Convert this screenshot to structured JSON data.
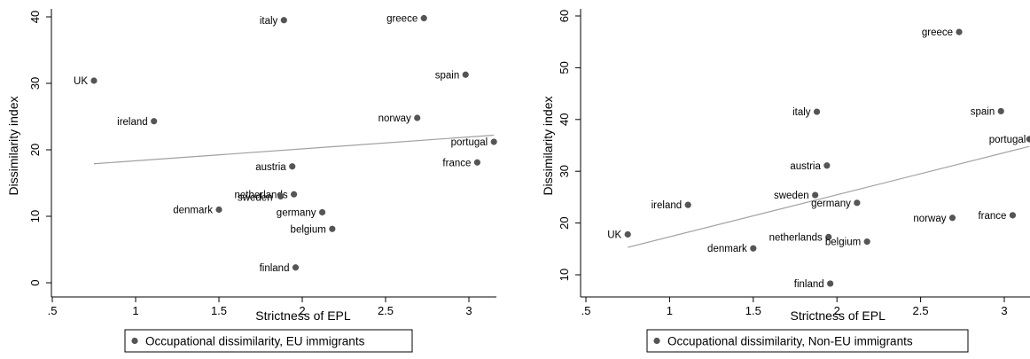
{
  "chart_data": [
    {
      "type": "scatter",
      "xlabel": "Strictness of EPL",
      "ylabel": "Dissimilarity index",
      "xlim": [
        0.5,
        3.15
      ],
      "ylim": [
        0,
        40
      ],
      "x_ticks": [
        0.5,
        1,
        1.5,
        2,
        2.5,
        3
      ],
      "x_tick_labels": [
        ".5",
        "1",
        "1.5",
        "2",
        "2.5",
        "3"
      ],
      "y_ticks": [
        0,
        10,
        20,
        30,
        40
      ],
      "y_tick_labels": [
        "0",
        "10",
        "20",
        "30",
        "40"
      ],
      "grid": false,
      "legend_position": "bottom",
      "series": [
        {
          "name": "Occupational dissimilarity, EU immigrants",
          "color": "#555555",
          "points": [
            {
              "label": "UK",
              "x": 0.75,
              "y": 30.4
            },
            {
              "label": "ireland",
              "x": 1.11,
              "y": 24.3
            },
            {
              "label": "denmark",
              "x": 1.5,
              "y": 11.0
            },
            {
              "label": "italy",
              "x": 1.89,
              "y": 39.5
            },
            {
              "label": "netherlands",
              "x": 1.95,
              "y": 13.3
            },
            {
              "label": "sweden",
              "x": 1.87,
              "y": 13.0
            },
            {
              "label": "finland",
              "x": 1.96,
              "y": 2.3
            },
            {
              "label": "austria",
              "x": 1.94,
              "y": 17.5
            },
            {
              "label": "germany",
              "x": 2.12,
              "y": 10.6
            },
            {
              "label": "belgium",
              "x": 2.18,
              "y": 8.1
            },
            {
              "label": "norway",
              "x": 2.69,
              "y": 24.8
            },
            {
              "label": "greece",
              "x": 2.73,
              "y": 39.8
            },
            {
              "label": "spain",
              "x": 2.98,
              "y": 31.3
            },
            {
              "label": "france",
              "x": 3.05,
              "y": 18.1
            },
            {
              "label": "portugal",
              "x": 3.15,
              "y": 21.2
            }
          ]
        }
      ],
      "fit_line": {
        "color": "#a0a0a0",
        "x": [
          0.75,
          3.15
        ],
        "y": [
          17.9,
          22.2
        ]
      }
    },
    {
      "type": "scatter",
      "xlabel": "Strictness of EPL",
      "ylabel": "Dissimilarity index",
      "xlim": [
        0.5,
        3.15
      ],
      "ylim": [
        10,
        60
      ],
      "x_ticks": [
        0.5,
        1,
        1.5,
        2,
        2.5,
        3
      ],
      "x_tick_labels": [
        ".5",
        "1",
        "1.5",
        "2",
        "2.5",
        "3"
      ],
      "y_ticks": [
        10,
        20,
        30,
        40,
        50,
        60
      ],
      "y_tick_labels": [
        "10",
        "20",
        "30",
        "40",
        "50",
        "60"
      ],
      "grid": false,
      "legend_position": "bottom",
      "series": [
        {
          "name": "Occupational dissimilarity, Non-EU immigrants",
          "color": "#555555",
          "points": [
            {
              "label": "UK",
              "x": 0.75,
              "y": 17.8
            },
            {
              "label": "ireland",
              "x": 1.11,
              "y": 23.5
            },
            {
              "label": "denmark",
              "x": 1.5,
              "y": 15.1
            },
            {
              "label": "italy",
              "x": 1.88,
              "y": 41.5
            },
            {
              "label": "sweden",
              "x": 1.87,
              "y": 25.4
            },
            {
              "label": "austria",
              "x": 1.94,
              "y": 31.1
            },
            {
              "label": "netherlands",
              "x": 1.95,
              "y": 17.3
            },
            {
              "label": "finland",
              "x": 1.96,
              "y": 8.3
            },
            {
              "label": "germany",
              "x": 2.12,
              "y": 23.9
            },
            {
              "label": "belgium",
              "x": 2.18,
              "y": 16.4
            },
            {
              "label": "norway",
              "x": 2.69,
              "y": 21.0
            },
            {
              "label": "greece",
              "x": 2.73,
              "y": 56.9
            },
            {
              "label": "spain",
              "x": 2.98,
              "y": 41.6
            },
            {
              "label": "france",
              "x": 3.05,
              "y": 21.5
            },
            {
              "label": "portugal",
              "x": 3.15,
              "y": 36.2
            }
          ]
        }
      ],
      "fit_line": {
        "color": "#a0a0a0",
        "x": [
          0.75,
          3.15
        ],
        "y": [
          15.3,
          34.8
        ]
      }
    }
  ]
}
